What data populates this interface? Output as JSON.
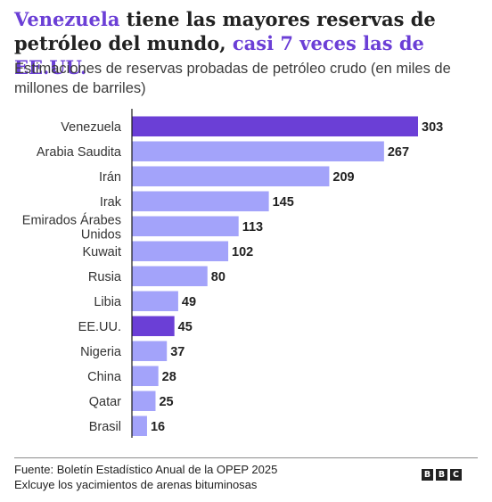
{
  "header": {
    "title_hl1": "Venezuela",
    "title_mid": " tiene las mayores reservas de petróleo del mundo, ",
    "title_hl2": "casi 7 veces las de EE.UU.",
    "subtitle": "Estimaciones de reservas probadas de petróleo crudo (en miles de millones de barriles)"
  },
  "colors": {
    "accent": "#6b3fd6",
    "highlight_bar": "#6b3fd6",
    "default_bar": "#a3a3fa"
  },
  "chart_data": {
    "type": "bar",
    "orientation": "horizontal",
    "categories": [
      "Venezuela",
      "Arabia Saudita",
      "Irán",
      "Irak",
      "Emirados Árabes Unidos",
      "Kuwait",
      "Rusia",
      "Libia",
      "EE.UU.",
      "Nigeria",
      "China",
      "Qatar",
      "Brasil"
    ],
    "category_lines": [
      [
        "Venezuela"
      ],
      [
        "Arabia Saudita"
      ],
      [
        "Irán"
      ],
      [
        "Irak"
      ],
      [
        "Emirados Árabes",
        "Unidos"
      ],
      [
        "Kuwait"
      ],
      [
        "Rusia"
      ],
      [
        "Libia"
      ],
      [
        "EE.UU."
      ],
      [
        "Nigeria"
      ],
      [
        "China"
      ],
      [
        "Qatar"
      ],
      [
        "Brasil"
      ]
    ],
    "values": [
      303,
      267,
      209,
      145,
      113,
      102,
      80,
      49,
      45,
      37,
      28,
      25,
      16
    ],
    "highlighted": [
      "Venezuela",
      "EE.UU."
    ],
    "xlim": [
      0,
      303
    ],
    "grid": false,
    "data_labels": true
  },
  "footer": {
    "source": "Fuente: Boletín Estadístico Anual de la OPEP 2025",
    "note": "Exlcuye los yacimientos de arenas bituminosas",
    "logo_letters": [
      "B",
      "B",
      "C"
    ]
  }
}
